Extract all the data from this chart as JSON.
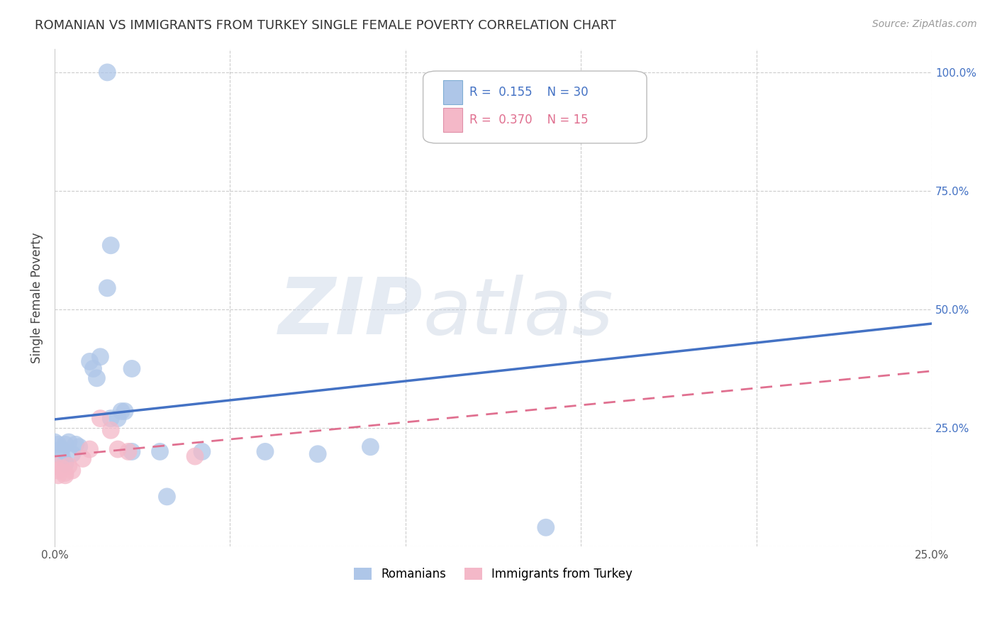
{
  "title": "ROMANIAN VS IMMIGRANTS FROM TURKEY SINGLE FEMALE POVERTY CORRELATION CHART",
  "source": "Source: ZipAtlas.com",
  "ylabel": "Single Female Poverty",
  "xlim": [
    0.0,
    0.25
  ],
  "ylim": [
    0.0,
    1.05
  ],
  "x_tick_positions": [
    0.0,
    0.05,
    0.1,
    0.15,
    0.2,
    0.25
  ],
  "x_tick_labels": [
    "0.0%",
    "",
    "",
    "",
    "",
    "25.0%"
  ],
  "y_tick_positions": [
    0.0,
    0.25,
    0.5,
    0.75,
    1.0
  ],
  "y_tick_labels": [
    "",
    "25.0%",
    "50.0%",
    "75.0%",
    "100.0%"
  ],
  "romanian_R": 0.155,
  "romanian_N": 30,
  "turkey_R": 0.37,
  "turkey_N": 15,
  "romanian_color": "#aec6e8",
  "turkey_color": "#f4b8c8",
  "romanian_line_color": "#4472c4",
  "turkey_line_color": "#e07090",
  "background_color": "#ffffff",
  "grid_color": "#cccccc",
  "romanian_line_x": [
    0.0,
    0.25
  ],
  "romanian_line_y": [
    0.268,
    0.47
  ],
  "turkey_line_x": [
    0.0,
    0.25
  ],
  "turkey_line_y": [
    0.19,
    0.37
  ],
  "romanian_points": [
    [
      0.0,
      0.22
    ],
    [
      0.001,
      0.215
    ],
    [
      0.002,
      0.205
    ],
    [
      0.002,
      0.19
    ],
    [
      0.003,
      0.215
    ],
    [
      0.003,
      0.175
    ],
    [
      0.004,
      0.22
    ],
    [
      0.005,
      0.195
    ],
    [
      0.006,
      0.215
    ],
    [
      0.007,
      0.21
    ],
    [
      0.01,
      0.39
    ],
    [
      0.011,
      0.375
    ],
    [
      0.012,
      0.355
    ],
    [
      0.013,
      0.4
    ],
    [
      0.016,
      0.27
    ],
    [
      0.018,
      0.27
    ],
    [
      0.019,
      0.285
    ],
    [
      0.022,
      0.375
    ],
    [
      0.015,
      0.545
    ],
    [
      0.016,
      0.635
    ],
    [
      0.02,
      0.285
    ],
    [
      0.022,
      0.2
    ],
    [
      0.03,
      0.2
    ],
    [
      0.032,
      0.105
    ],
    [
      0.042,
      0.2
    ],
    [
      0.06,
      0.2
    ],
    [
      0.075,
      0.195
    ],
    [
      0.09,
      0.21
    ],
    [
      0.14,
      0.04
    ],
    [
      0.015,
      1.0
    ]
  ],
  "turkey_points": [
    [
      0.0,
      0.17
    ],
    [
      0.001,
      0.16
    ],
    [
      0.001,
      0.15
    ],
    [
      0.002,
      0.165
    ],
    [
      0.003,
      0.155
    ],
    [
      0.003,
      0.15
    ],
    [
      0.004,
      0.17
    ],
    [
      0.005,
      0.16
    ],
    [
      0.008,
      0.185
    ],
    [
      0.01,
      0.205
    ],
    [
      0.013,
      0.27
    ],
    [
      0.016,
      0.245
    ],
    [
      0.018,
      0.205
    ],
    [
      0.021,
      0.2
    ],
    [
      0.04,
      0.19
    ]
  ]
}
